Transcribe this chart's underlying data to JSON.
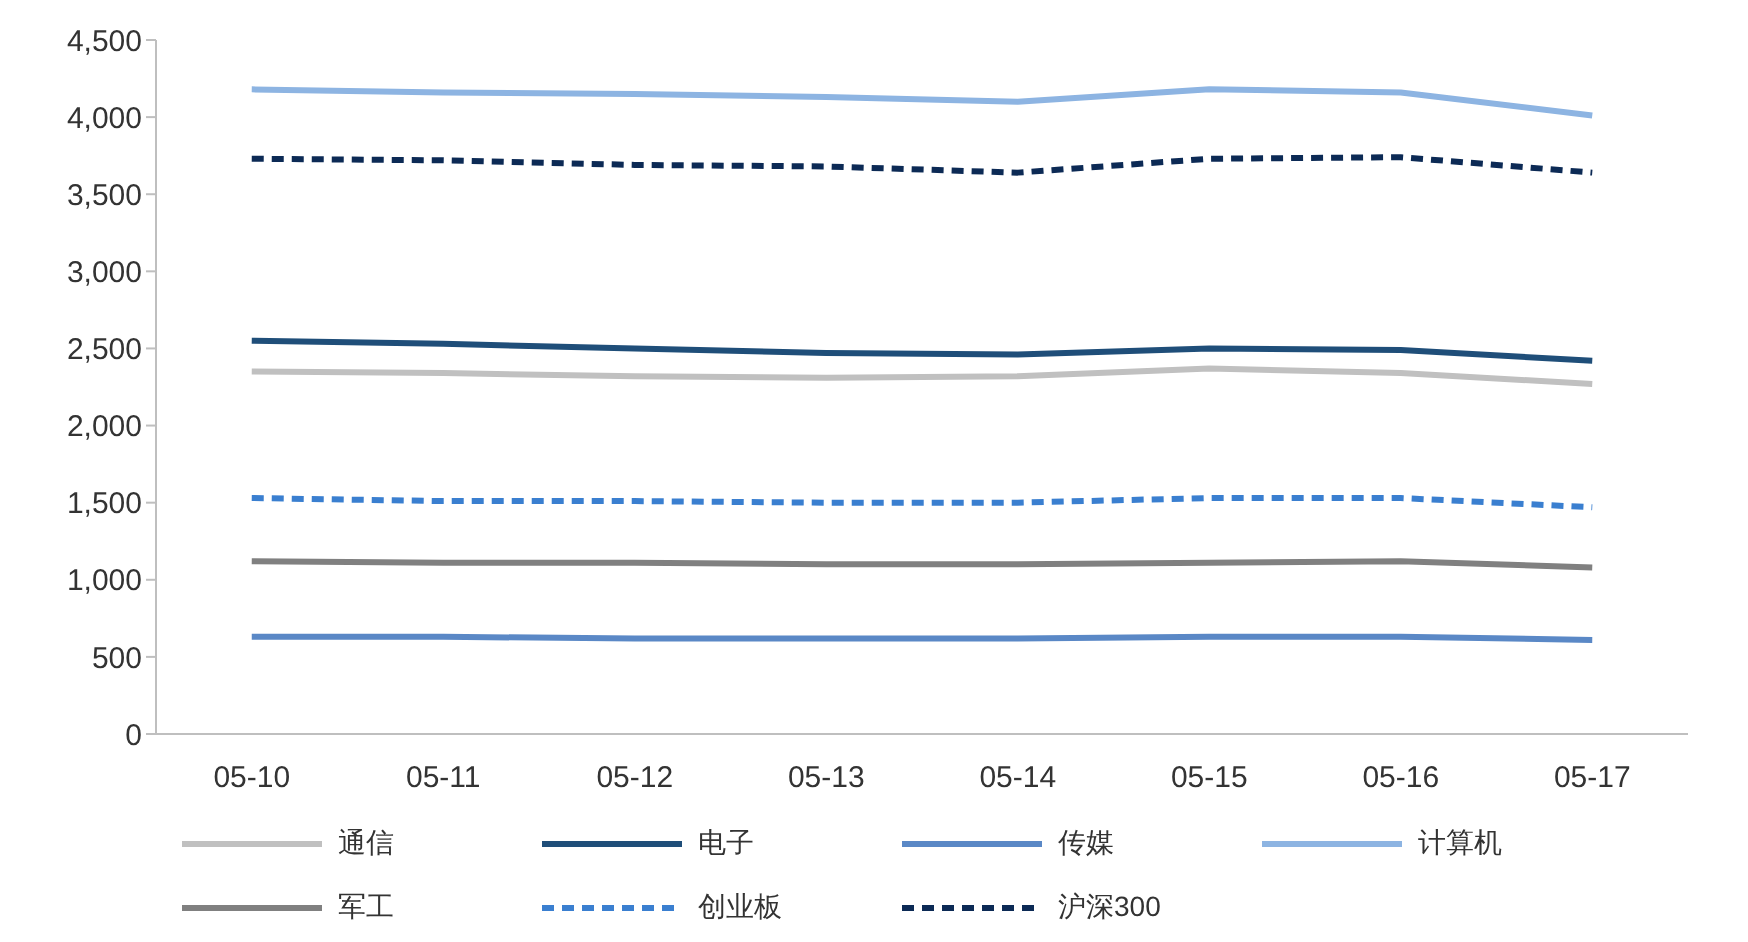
{
  "chart_data": {
    "type": "line",
    "categories": [
      "05-10",
      "05-11",
      "05-12",
      "05-13",
      "05-14",
      "05-15",
      "05-16",
      "05-17"
    ],
    "series": [
      {
        "name": "通信",
        "color": "#c0c0c0",
        "values": [
          2350,
          2340,
          2320,
          2310,
          2320,
          2370,
          2340,
          2270
        ]
      },
      {
        "name": "电子",
        "color": "#1f4e79",
        "values": [
          2550,
          2530,
          2500,
          2470,
          2460,
          2500,
          2490,
          2420
        ]
      },
      {
        "name": "传媒",
        "color": "#5a88c6",
        "values": [
          630,
          630,
          620,
          620,
          620,
          630,
          630,
          610
        ]
      },
      {
        "name": "计算机",
        "color": "#8db4e2",
        "values": [
          4180,
          4160,
          4150,
          4130,
          4100,
          4180,
          4160,
          4010
        ]
      },
      {
        "name": "军工",
        "color": "#808080",
        "values": [
          1120,
          1110,
          1110,
          1100,
          1100,
          1110,
          1120,
          1080
        ]
      },
      {
        "name": "创业板",
        "color": "#3a7fd0",
        "values": [
          1530,
          1510,
          1510,
          1500,
          1500,
          1530,
          1530,
          1470
        ],
        "line_style": "dashed"
      },
      {
        "name": "沪深300",
        "color": "#0c2a55",
        "values": [
          3730,
          3720,
          3690,
          3680,
          3640,
          3730,
          3740,
          3640
        ],
        "line_style": "dashed"
      }
    ],
    "ylim": [
      0,
      4500
    ],
    "yticks": [
      0,
      500,
      {
        "value": 1000,
        "label": "1,000"
      },
      {
        "value": 1500,
        "label": "1,500"
      },
      {
        "value": 2000,
        "label": "2,000"
      },
      {
        "value": 2500,
        "label": "2,500"
      },
      {
        "value": 3000,
        "label": "3,000"
      },
      {
        "value": 3500,
        "label": "3,500"
      },
      {
        "value": 4000,
        "label": "4,000"
      },
      {
        "value": 4500,
        "label": "4,500"
      }
    ],
    "grid": false,
    "legend": "bottom",
    "marker": "none"
  }
}
